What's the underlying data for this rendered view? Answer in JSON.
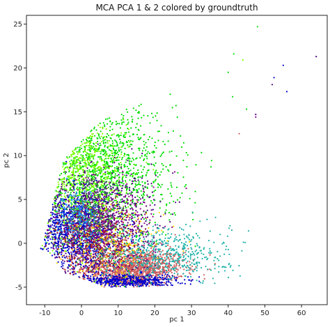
{
  "chart_data": {
    "type": "scatter",
    "title": "MCA PCA 1 & 2 colored by groundtruth",
    "xlabel": "pc 1",
    "ylabel": "pc 2",
    "xlim": [
      -15,
      67
    ],
    "ylim": [
      -7,
      26
    ],
    "xticks": [
      -10,
      0,
      10,
      20,
      30,
      40,
      50,
      60
    ],
    "yticks": [
      -5,
      0,
      5,
      10,
      15,
      20,
      25
    ],
    "grid": false,
    "legend": "none",
    "colors": [
      "#00dd00",
      "#7fff00",
      "#4b0082",
      "#0000cd",
      "#cd5c5c",
      "#20b2aa",
      "#b22222",
      "#ffd700",
      "#8b008b",
      "#2e8b57",
      "#1e90ff"
    ],
    "clusters": [
      {
        "color": "#cd5c5c",
        "center": [
          14,
          -2.8
        ],
        "spread": [
          7,
          1.1
        ],
        "count": 1400
      },
      {
        "color": "#0000cd",
        "center": [
          12,
          -4.3
        ],
        "spread": [
          7,
          0.4
        ],
        "count": 500
      },
      {
        "color": "#00dd00",
        "center": [
          5,
          8
        ],
        "spread": [
          10,
          4
        ],
        "count": 1300
      },
      {
        "color": "#7fff00",
        "center": [
          0,
          7
        ],
        "spread": [
          6,
          4
        ],
        "count": 700
      },
      {
        "color": "#4b0082",
        "center": [
          3,
          2.5
        ],
        "spread": [
          8,
          3
        ],
        "count": 1100
      },
      {
        "color": "#0000cd",
        "center": [
          -2,
          1
        ],
        "spread": [
          5,
          2.2
        ],
        "count": 700
      },
      {
        "color": "#20b2aa",
        "center": [
          22,
          -1.2
        ],
        "spread": [
          9,
          1.5
        ],
        "count": 600
      },
      {
        "color": "#b22222",
        "center": [
          4,
          0.5
        ],
        "spread": [
          6,
          2
        ],
        "count": 350
      },
      {
        "color": "#ffd700",
        "center": [
          8,
          0
        ],
        "spread": [
          7,
          2.5
        ],
        "count": 250
      },
      {
        "color": "#8b008b",
        "center": [
          6,
          2
        ],
        "spread": [
          7,
          2.5
        ],
        "count": 350
      },
      {
        "color": "#2e8b57",
        "center": [
          2,
          3
        ],
        "spread": [
          4,
          2
        ],
        "count": 200
      },
      {
        "color": "#1e90ff",
        "center": [
          -1,
          3
        ],
        "spread": [
          3,
          1.5
        ],
        "count": 150
      }
    ],
    "outliers": [
      {
        "x": 48,
        "y": 24.7,
        "color": "#00dd00"
      },
      {
        "x": 64,
        "y": 21.3,
        "color": "#4b0082"
      },
      {
        "x": 55,
        "y": 20.3,
        "color": "#0000cd"
      },
      {
        "x": 52.5,
        "y": 18.9,
        "color": "#0000cd"
      },
      {
        "x": 52,
        "y": 18.1,
        "color": "#4b0082"
      },
      {
        "x": 56,
        "y": 17.3,
        "color": "#0000cd"
      },
      {
        "x": 41.5,
        "y": 21.6,
        "color": "#00dd00"
      },
      {
        "x": 44,
        "y": 20.9,
        "color": "#7fff00"
      },
      {
        "x": 40,
        "y": 19.5,
        "color": "#00dd00"
      },
      {
        "x": 47.5,
        "y": 14.7,
        "color": "#4b0082"
      },
      {
        "x": 47.5,
        "y": 14.4,
        "color": "#8b008b"
      },
      {
        "x": 45,
        "y": 15.3,
        "color": "#00dd00"
      },
      {
        "x": 43,
        "y": 12.5,
        "color": "#cd5c5c"
      },
      {
        "x": 40.5,
        "y": 2,
        "color": "#20b2aa"
      },
      {
        "x": 41,
        "y": 1.5,
        "color": "#20b2aa"
      }
    ]
  }
}
